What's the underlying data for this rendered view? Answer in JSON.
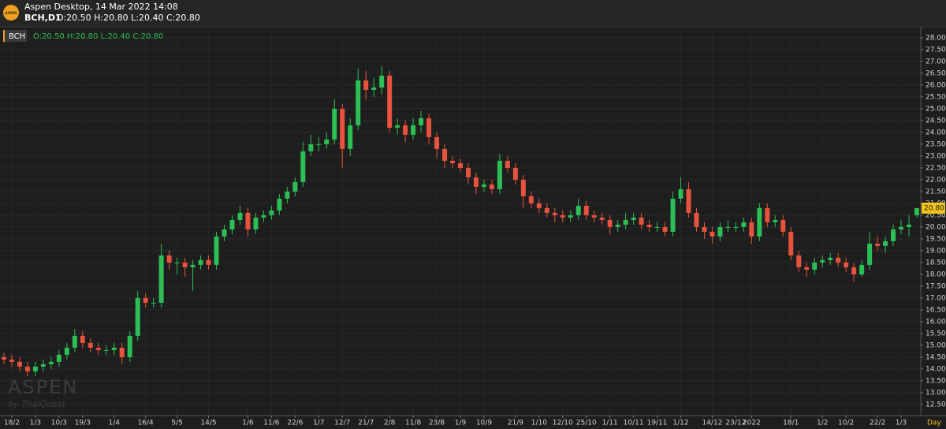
{
  "header": {
    "logo": "ASPEN",
    "app": "Aspen Desktop, 14 Mar 2022 14:08",
    "symbol": "BCH,D1",
    "ohlc": "O:20.50 H:20.80 L:20.40 C:20.80"
  },
  "watermark": {
    "brand": "ASPEN",
    "by": "by ThaiQuest"
  },
  "chart_data": {
    "type": "candlestick",
    "legend": {
      "symbol": "BCH",
      "ohlc": "O:20.50 H:20.80 L:20.40 C:20.80"
    },
    "categories": [
      null,
      "18/2",
      null,
      null,
      "1/3",
      null,
      null,
      "10/3",
      null,
      null,
      "19/3",
      null,
      null,
      null,
      "1/4",
      null,
      null,
      null,
      "16/4",
      null,
      null,
      null,
      "5/5",
      null,
      null,
      null,
      "14/5",
      null,
      null,
      null,
      null,
      "1/6",
      null,
      null,
      "11/6",
      null,
      null,
      "22/6",
      null,
      null,
      "1/7",
      null,
      null,
      "12/7",
      null,
      null,
      "21/7",
      null,
      null,
      "2/8",
      null,
      null,
      "11/8",
      null,
      null,
      "23/8",
      null,
      null,
      "1/9",
      null,
      null,
      "10/9",
      null,
      null,
      null,
      "21/9",
      null,
      null,
      "1/10",
      null,
      null,
      "12/10",
      null,
      null,
      "25/10",
      null,
      null,
      "1/11",
      null,
      null,
      "10/11",
      null,
      null,
      "19/11",
      null,
      null,
      "1/12",
      null,
      null,
      null,
      "14/12",
      null,
      null,
      "23/12",
      null,
      "2022",
      null,
      null,
      null,
      null,
      "18/1",
      null,
      null,
      null,
      "1/2",
      null,
      null,
      "10/2",
      null,
      null,
      null,
      "22/2",
      null,
      null,
      "1/3",
      null,
      null
    ],
    "open": [
      14.5,
      14.4,
      14.3,
      14.1,
      13.9,
      14.1,
      14.2,
      14.3,
      14.6,
      14.9,
      15.4,
      15.1,
      14.9,
      14.8,
      14.8,
      14.9,
      14.5,
      15.4,
      17.0,
      16.8,
      16.8,
      18.8,
      18.5,
      18.5,
      18.3,
      18.4,
      18.6,
      18.4,
      19.6,
      19.9,
      20.3,
      20.6,
      19.9,
      20.4,
      20.5,
      20.7,
      21.2,
      21.5,
      21.9,
      23.2,
      23.5,
      23.5,
      23.7,
      25.0,
      23.3,
      24.3,
      26.2,
      25.8,
      25.9,
      26.4,
      24.2,
      24.3,
      23.9,
      24.3,
      24.6,
      23.8,
      23.3,
      22.8,
      22.7,
      22.5,
      22.1,
      21.7,
      21.8,
      21.6,
      22.8,
      22.5,
      22.0,
      21.3,
      21.0,
      20.8,
      20.6,
      20.5,
      20.4,
      20.5,
      20.9,
      20.5,
      20.4,
      20.3,
      20.0,
      20.1,
      20.3,
      20.4,
      20.1,
      20.0,
      20.0,
      19.8,
      21.2,
      21.6,
      20.6,
      20.0,
      19.8,
      19.6,
      20.0,
      20.0,
      20.0,
      20.2,
      19.6,
      20.8,
      20.2,
      20.3,
      19.8,
      18.8,
      18.3,
      18.2,
      18.5,
      18.6,
      18.7,
      18.5,
      18.3,
      18.0,
      18.4,
      19.3,
      19.2,
      19.4,
      19.9,
      20.0,
      20.5
    ],
    "high": [
      14.7,
      14.6,
      14.5,
      14.3,
      14.3,
      14.4,
      14.5,
      14.8,
      15.1,
      15.7,
      15.6,
      15.3,
      15.1,
      15.0,
      15.1,
      15.1,
      15.6,
      17.3,
      17.2,
      17.0,
      19.3,
      19.0,
      18.7,
      18.7,
      18.6,
      18.8,
      18.8,
      19.8,
      20.1,
      20.5,
      20.9,
      20.8,
      20.6,
      20.7,
      20.9,
      21.4,
      21.7,
      22.1,
      23.6,
      23.9,
      23.8,
      24.0,
      25.4,
      25.2,
      24.6,
      26.7,
      26.6,
      26.3,
      26.8,
      26.6,
      24.6,
      24.5,
      24.6,
      24.9,
      24.8,
      24.0,
      23.5,
      23.0,
      22.9,
      22.7,
      22.3,
      22.0,
      22.0,
      23.1,
      23.0,
      22.7,
      22.2,
      21.5,
      21.2,
      21.0,
      20.8,
      20.7,
      20.7,
      21.2,
      21.1,
      20.7,
      20.6,
      20.5,
      20.3,
      20.6,
      20.6,
      20.6,
      20.3,
      20.2,
      20.2,
      21.5,
      22.1,
      21.9,
      20.8,
      20.2,
      20.0,
      20.2,
      20.3,
      20.2,
      20.4,
      20.4,
      21.0,
      21.0,
      20.5,
      20.5,
      20.0,
      19.0,
      18.5,
      18.7,
      18.8,
      18.9,
      18.9,
      18.7,
      18.5,
      18.6,
      19.8,
      19.6,
      19.6,
      20.1,
      20.3,
      20.5,
      20.8
    ],
    "low": [
      14.2,
      14.1,
      13.9,
      13.7,
      13.7,
      13.9,
      14.0,
      14.1,
      14.4,
      14.7,
      14.9,
      14.7,
      14.6,
      14.6,
      14.6,
      14.2,
      14.3,
      15.2,
      16.6,
      16.6,
      16.6,
      18.2,
      18.0,
      17.9,
      17.3,
      18.2,
      18.2,
      18.2,
      19.4,
      19.7,
      20.1,
      19.6,
      19.7,
      20.2,
      20.3,
      20.5,
      21.0,
      21.3,
      21.7,
      23.0,
      23.2,
      23.3,
      23.5,
      22.5,
      23.0,
      24.1,
      25.4,
      25.5,
      25.6,
      24.0,
      23.9,
      23.6,
      23.7,
      24.0,
      23.5,
      22.9,
      22.5,
      22.5,
      22.3,
      21.8,
      21.4,
      21.5,
      21.4,
      21.4,
      22.3,
      21.8,
      20.8,
      20.8,
      20.6,
      20.4,
      20.2,
      20.2,
      20.2,
      20.3,
      20.3,
      20.2,
      20.1,
      19.7,
      19.8,
      19.9,
      20.1,
      19.9,
      19.8,
      19.8,
      19.6,
      19.6,
      21.0,
      20.4,
      19.8,
      19.5,
      19.3,
      19.4,
      19.8,
      19.8,
      19.8,
      19.3,
      19.4,
      20.0,
      20.0,
      19.6,
      18.6,
      18.1,
      17.9,
      18.0,
      18.3,
      18.4,
      18.3,
      18.1,
      17.7,
      17.9,
      18.2,
      19.0,
      18.9,
      19.2,
      19.7,
      19.6,
      20.4
    ],
    "close": [
      14.4,
      14.3,
      14.1,
      13.9,
      14.1,
      14.2,
      14.3,
      14.6,
      14.9,
      15.4,
      15.1,
      14.9,
      14.8,
      14.8,
      14.9,
      14.5,
      15.4,
      17.0,
      16.8,
      16.8,
      18.8,
      18.5,
      18.5,
      18.3,
      18.4,
      18.6,
      18.4,
      19.6,
      19.9,
      20.3,
      20.6,
      19.9,
      20.4,
      20.5,
      20.7,
      21.2,
      21.5,
      21.9,
      23.2,
      23.5,
      23.5,
      23.7,
      25.0,
      23.3,
      24.3,
      26.2,
      25.8,
      25.9,
      26.4,
      24.2,
      24.3,
      23.9,
      24.3,
      24.6,
      23.8,
      23.3,
      22.8,
      22.7,
      22.5,
      22.1,
      21.7,
      21.8,
      21.6,
      22.8,
      22.5,
      22.0,
      21.3,
      21.0,
      20.8,
      20.6,
      20.5,
      20.4,
      20.5,
      20.9,
      20.5,
      20.4,
      20.3,
      20.0,
      20.1,
      20.3,
      20.4,
      20.1,
      20.0,
      20.0,
      19.8,
      21.2,
      21.6,
      20.6,
      20.0,
      19.8,
      19.6,
      20.0,
      20.0,
      20.0,
      20.2,
      19.6,
      20.8,
      20.2,
      20.3,
      19.8,
      18.8,
      18.3,
      18.2,
      18.5,
      18.6,
      18.7,
      18.5,
      18.3,
      18.0,
      18.4,
      19.3,
      19.2,
      19.4,
      19.9,
      20.0,
      20.1,
      20.8
    ],
    "up_color": "#2cbf55",
    "down_color": "#e8533d",
    "tag_color": "#f2c417",
    "price_tag": "20.80",
    "period": "Day",
    "ylim": [
      12.03,
      28.43
    ],
    "yticks": [
      {
        "value": 12.5,
        "label": "12.50"
      },
      {
        "value": 13,
        "label": "13.00"
      },
      {
        "value": 13.5,
        "label": "13.50"
      },
      {
        "value": 14,
        "label": "14.00"
      },
      {
        "value": 14.5,
        "label": "14.50"
      },
      {
        "value": 15,
        "label": "15.00"
      },
      {
        "value": 15.5,
        "label": "15.50"
      },
      {
        "value": 16,
        "label": "16.00"
      },
      {
        "value": 16.5,
        "label": "16.50"
      },
      {
        "value": 17,
        "label": "17.00"
      },
      {
        "value": 17.5,
        "label": "17.50"
      },
      {
        "value": 18,
        "label": "18.00"
      },
      {
        "value": 18.5,
        "label": "18.50"
      },
      {
        "value": 19,
        "label": "19.00"
      },
      {
        "value": 19.5,
        "label": "19.50"
      },
      {
        "value": 20,
        "label": "20.00"
      },
      {
        "value": 20.5,
        "label": "20.50"
      },
      {
        "value": 21,
        "label": "21.00"
      },
      {
        "value": 21.5,
        "label": "21.50"
      },
      {
        "value": 22,
        "label": "22.00"
      },
      {
        "value": 22.5,
        "label": "22.50"
      },
      {
        "value": 23,
        "label": "23.00"
      },
      {
        "value": 23.5,
        "label": "23.50"
      },
      {
        "value": 24,
        "label": "24.00"
      },
      {
        "value": 24.5,
        "label": "24.50"
      },
      {
        "value": 25,
        "label": "25.00"
      },
      {
        "value": 25.5,
        "label": "25.50"
      },
      {
        "value": 26,
        "label": "26.00"
      },
      {
        "value": 26.5,
        "label": "26.50"
      },
      {
        "value": 27,
        "label": "27.00"
      },
      {
        "value": 27.5,
        "label": "27.50"
      },
      {
        "value": 28,
        "label": "28.00"
      }
    ],
    "grid": true
  }
}
